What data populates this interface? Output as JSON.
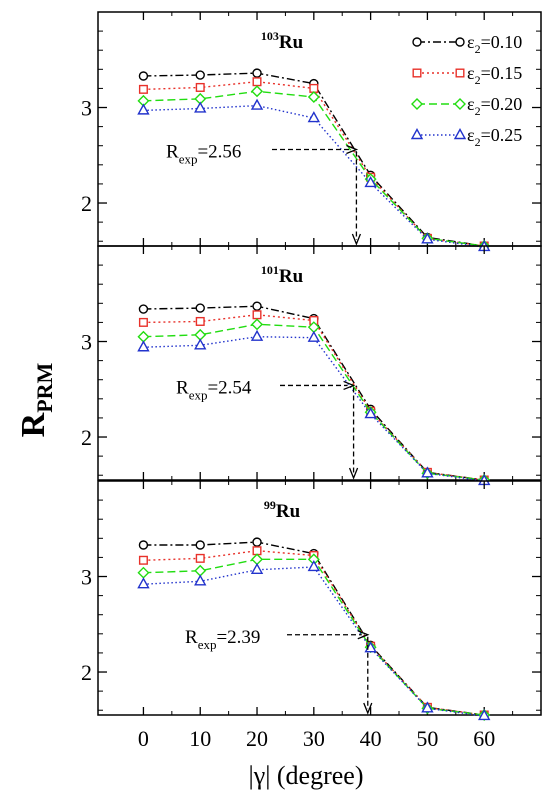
{
  "chart_data": [
    {
      "type": "line",
      "title": "Ru",
      "title_sup": "103",
      "x": [
        0,
        10,
        20,
        30,
        40,
        50,
        60
      ],
      "xlim": [
        -8,
        70
      ],
      "ylim": [
        1.55,
        4.0
      ],
      "yticks": [
        2,
        3
      ],
      "series": [
        {
          "name": "ε2=0.10",
          "eps": "0.10",
          "values": [
            3.33,
            3.34,
            3.36,
            3.25,
            2.29,
            1.64,
            1.55
          ]
        },
        {
          "name": "ε2=0.15",
          "eps": "0.15",
          "values": [
            3.19,
            3.21,
            3.27,
            3.2,
            2.27,
            1.63,
            1.55
          ]
        },
        {
          "name": "ε2=0.20",
          "eps": "0.20",
          "values": [
            3.07,
            3.09,
            3.17,
            3.11,
            2.25,
            1.63,
            1.55
          ]
        },
        {
          "name": "ε2=0.25",
          "eps": "0.25",
          "values": [
            2.97,
            2.99,
            3.02,
            2.89,
            2.21,
            1.62,
            1.54
          ]
        }
      ],
      "legend": "top-right",
      "annotation": {
        "label_main": "R",
        "label_sub": "exp",
        "label_rest": "=2.56",
        "value": 2.56,
        "x_cross": 37.5
      }
    },
    {
      "type": "line",
      "title": "Ru",
      "title_sup": "101",
      "x": [
        0,
        10,
        20,
        30,
        40,
        50,
        60
      ],
      "xlim": [
        -8,
        70
      ],
      "ylim": [
        1.55,
        4.0
      ],
      "yticks": [
        2,
        3
      ],
      "series": [
        {
          "name": "ε2=0.10",
          "eps": "0.10",
          "values": [
            3.34,
            3.35,
            3.37,
            3.24,
            2.29,
            1.63,
            1.55
          ]
        },
        {
          "name": "ε2=0.15",
          "eps": "0.15",
          "values": [
            3.2,
            3.21,
            3.28,
            3.22,
            2.27,
            1.63,
            1.55
          ]
        },
        {
          "name": "ε2=0.20",
          "eps": "0.20",
          "values": [
            3.05,
            3.07,
            3.18,
            3.15,
            2.26,
            1.62,
            1.55
          ]
        },
        {
          "name": "ε2=0.25",
          "eps": "0.25",
          "values": [
            2.94,
            2.96,
            3.05,
            3.04,
            2.24,
            1.62,
            1.54
          ]
        }
      ],
      "annotation": {
        "label_main": "R",
        "label_sub": "exp",
        "label_rest": "=2.54",
        "value": 2.54,
        "x_cross": 37.0
      }
    },
    {
      "type": "line",
      "title": "Ru",
      "title_sup": "99",
      "x": [
        0,
        10,
        20,
        30,
        40,
        50,
        60
      ],
      "xlim": [
        -8,
        70
      ],
      "ylim": [
        1.55,
        4.0
      ],
      "yticks": [
        2,
        3
      ],
      "xticks": [
        0,
        10,
        20,
        30,
        40,
        50,
        60
      ],
      "xlabel": "|γ| (degree)",
      "series": [
        {
          "name": "ε2=0.10",
          "eps": "0.10",
          "values": [
            3.33,
            3.33,
            3.36,
            3.24,
            2.28,
            1.63,
            1.55
          ]
        },
        {
          "name": "ε2=0.15",
          "eps": "0.15",
          "values": [
            3.17,
            3.19,
            3.27,
            3.22,
            2.27,
            1.63,
            1.55
          ]
        },
        {
          "name": "ε2=0.20",
          "eps": "0.20",
          "values": [
            3.04,
            3.06,
            3.18,
            3.18,
            2.26,
            1.62,
            1.55
          ]
        },
        {
          "name": "ε2=0.25",
          "eps": "0.25",
          "values": [
            2.92,
            2.95,
            3.07,
            3.1,
            2.25,
            1.62,
            1.54
          ]
        }
      ],
      "annotation": {
        "label_main": "R",
        "label_sub": "exp",
        "label_rest": "=2.39",
        "value": 2.39,
        "x_cross": 39.5
      }
    }
  ],
  "ylabel": {
    "main": "R",
    "sub": "PRM"
  },
  "legend_prefix": "ε",
  "legend_sub": "2",
  "legend_eq": "=",
  "colors": {
    "ε2=0.10": "#000000",
    "ε2=0.15": "#e8312a",
    "ε2=0.20": "#22dd11",
    "ε2=0.25": "#2233cc"
  },
  "styles": {
    "ε2=0.10": {
      "marker": "circle",
      "dash": "8,3,2,3"
    },
    "ε2=0.15": {
      "marker": "square",
      "dash": "2,3"
    },
    "ε2=0.20": {
      "marker": "diamond",
      "dash": "8,4"
    },
    "ε2=0.25": {
      "marker": "triangle",
      "dash": "1.5,2.5"
    }
  }
}
